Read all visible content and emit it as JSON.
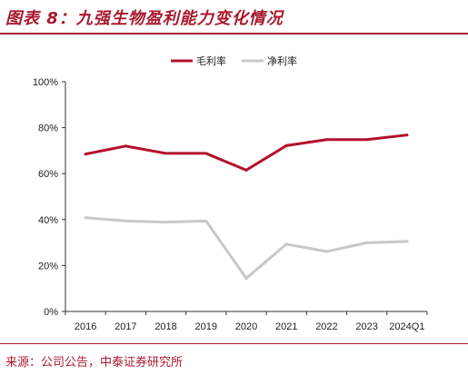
{
  "title": "图表 8：九强生物盈利能力变化情况",
  "source": "来源：公司公告，中泰证券研究所",
  "colors": {
    "accent": "#a8192e",
    "gross": "#b3102c",
    "net": "#c8c8c8"
  },
  "chart_data": {
    "type": "line",
    "categories": [
      "2016",
      "2017",
      "2018",
      "2019",
      "2020",
      "2021",
      "2022",
      "2023",
      "2024Q1"
    ],
    "series": [
      {
        "name": "毛利率",
        "color": "#b3102c",
        "values": [
          68.5,
          72.0,
          68.8,
          68.8,
          61.5,
          72.2,
          74.8,
          74.8,
          76.8
        ]
      },
      {
        "name": "净利率",
        "color": "#c8c8c8",
        "values": [
          40.8,
          39.4,
          38.9,
          39.4,
          14.4,
          29.3,
          26.1,
          29.9,
          30.5
        ]
      }
    ],
    "ylim": [
      0,
      100
    ],
    "yticks": [
      "0%",
      "20%",
      "40%",
      "60%",
      "80%",
      "100%"
    ],
    "legend_position": "top-center",
    "grid": false
  }
}
